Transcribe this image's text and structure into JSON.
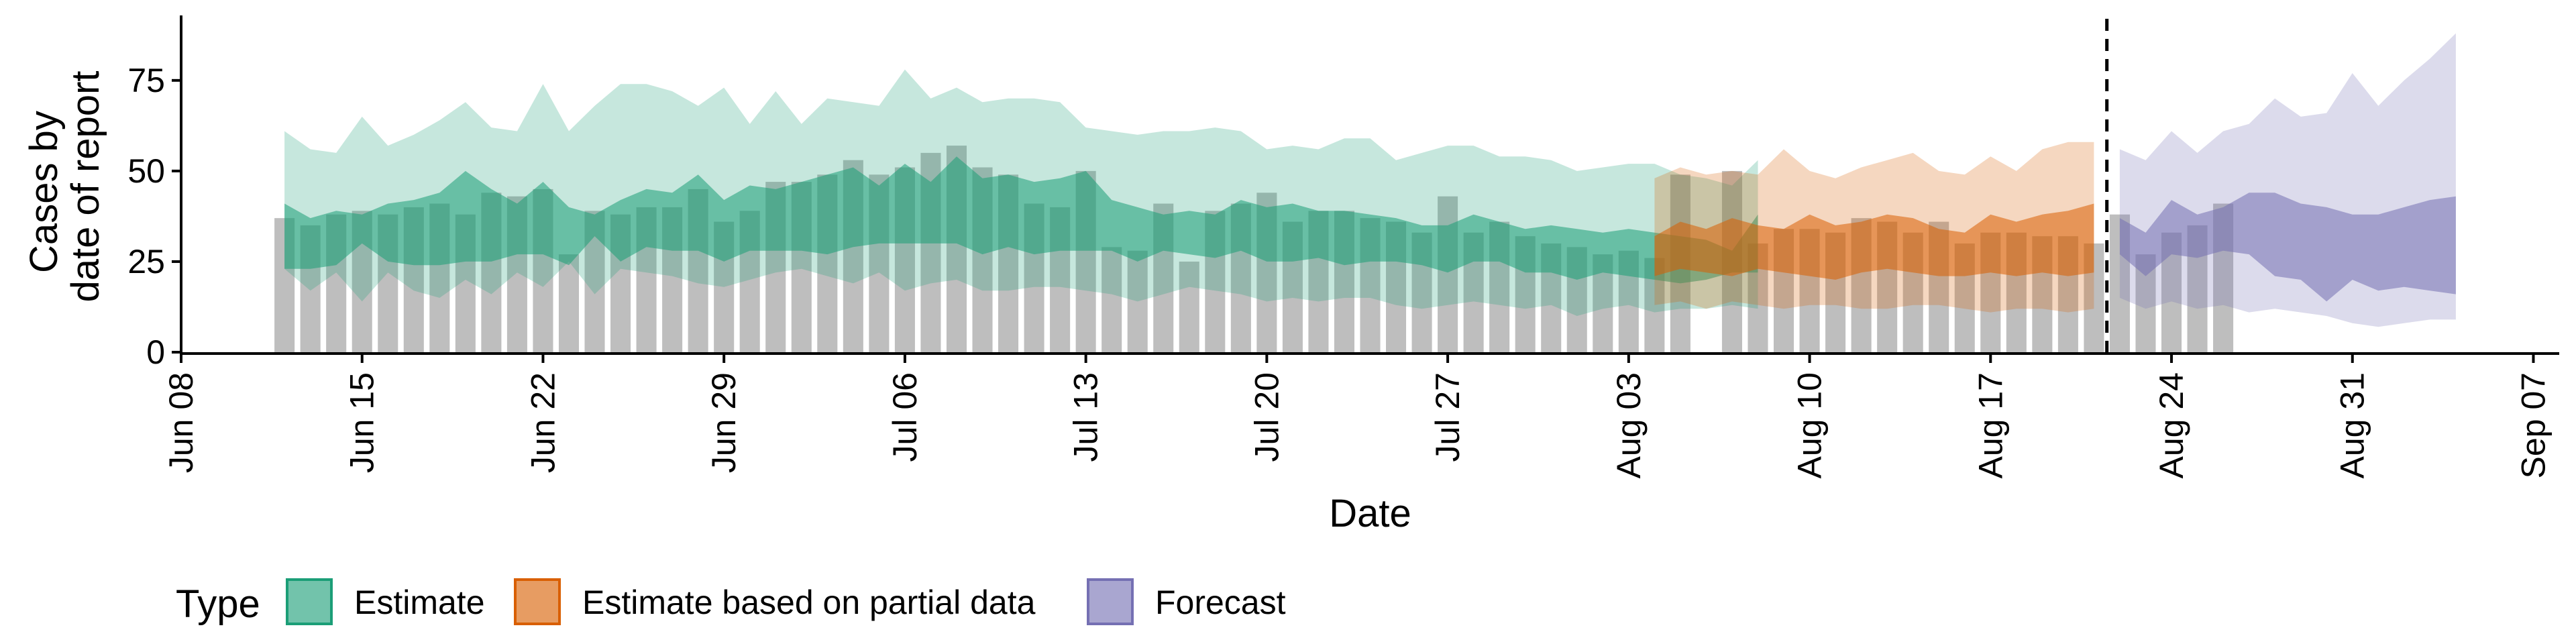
{
  "chart_data": {
    "type": "bar",
    "xlabel": "Date",
    "ylabel_lines": [
      "Cases by",
      "date of report"
    ],
    "ylim": [
      0,
      92
    ],
    "y_ticks": [
      0,
      25,
      50,
      75
    ],
    "x_ticks": [
      "2020-06-08",
      "2020-06-15",
      "2020-06-22",
      "2020-06-29",
      "2020-07-06",
      "2020-07-13",
      "2020-07-20",
      "2020-07-27",
      "2020-08-03",
      "2020-08-10",
      "2020-08-17",
      "2020-08-24",
      "2020-08-31",
      "2020-09-07"
    ],
    "x_tick_labels": [
      "Jun 08",
      "Jun 15",
      "Jun 22",
      "Jun 29",
      "Jul 06",
      "Jul 13",
      "Jul 20",
      "Jul 27",
      "Aug 03",
      "Aug 10",
      "Aug 17",
      "Aug 24",
      "Aug 31",
      "Sep 07"
    ],
    "xlim": [
      "2020-06-08",
      "2020-09-08"
    ],
    "grid": false,
    "legend_position": "bottom",
    "legend_title": "Type",
    "cutoff_date": "2020-08-21",
    "reported_cases": {
      "color": "#bebebe",
      "start_date": "2020-06-12",
      "values": [
        37,
        35,
        38,
        39,
        38,
        40,
        41,
        38,
        44,
        43,
        45,
        27,
        39,
        38,
        40,
        40,
        45,
        36,
        39,
        47,
        47,
        49,
        53,
        49,
        51,
        55,
        57,
        51,
        49,
        41,
        40,
        50,
        29,
        28,
        41,
        25,
        39,
        41,
        44,
        36,
        39,
        39,
        37,
        36,
        33,
        43,
        33,
        36,
        32,
        30,
        29,
        27,
        28,
        26,
        49,
        0,
        50,
        30,
        34,
        34,
        33,
        37,
        36,
        33,
        36,
        30,
        33,
        33,
        32,
        32,
        30,
        38,
        27,
        33,
        35,
        41
      ]
    },
    "series": [
      {
        "name": "Estimate",
        "fill": "#1b9e77",
        "border": "#1b9e77",
        "start_date": "2020-06-12",
        "lower_90": [
          23,
          17,
          22,
          14,
          22,
          17,
          15,
          20,
          16,
          22,
          18,
          25,
          16,
          23,
          22,
          21,
          19,
          18,
          20,
          22,
          23,
          21,
          19,
          22,
          17,
          19,
          20,
          17,
          17,
          18,
          18,
          17,
          16,
          14,
          16,
          18,
          17,
          16,
          14,
          15,
          14,
          15,
          15,
          13,
          12,
          13,
          14,
          13,
          12,
          13,
          10,
          12,
          13,
          11,
          12,
          12,
          13,
          12
        ],
        "lower_50": [
          23,
          23,
          24,
          30,
          25,
          24,
          24,
          25,
          25,
          27,
          27,
          24,
          32,
          25,
          29,
          28,
          28,
          25,
          28,
          28,
          28,
          27,
          29,
          30,
          30,
          30,
          30,
          27,
          29,
          27,
          28,
          28,
          28,
          25,
          28,
          27,
          26,
          28,
          25,
          25,
          26,
          24,
          25,
          25,
          24,
          22,
          25,
          25,
          22,
          22,
          20,
          22,
          21,
          20,
          19,
          20,
          22,
          22
        ],
        "upper_50": [
          41,
          37,
          39,
          38,
          41,
          42,
          44,
          50,
          45,
          41,
          47,
          40,
          38,
          42,
          45,
          44,
          49,
          42,
          46,
          45,
          47,
          49,
          51,
          46,
          52,
          47,
          54,
          48,
          49,
          47,
          48,
          50,
          42,
          40,
          38,
          39,
          38,
          42,
          40,
          41,
          39,
          39,
          38,
          37,
          35,
          35,
          38,
          36,
          34,
          35,
          34,
          33,
          34,
          33,
          32,
          31,
          28,
          38
        ],
        "upper_90": [
          61,
          56,
          55,
          65,
          57,
          60,
          64,
          69,
          62,
          61,
          74,
          61,
          68,
          74,
          74,
          72,
          68,
          73,
          63,
          72,
          63,
          70,
          69,
          68,
          78,
          70,
          73,
          69,
          70,
          70,
          69,
          62,
          61,
          60,
          61,
          61,
          62,
          61,
          56,
          57,
          56,
          59,
          59,
          53,
          55,
          57,
          57,
          54,
          54,
          53,
          50,
          51,
          52,
          52,
          49,
          48,
          46,
          53
        ]
      },
      {
        "name": "Estimate based on partial data",
        "fill": "#d95f02",
        "border": "#d95f02",
        "start_date": "2020-08-04",
        "lower_90": [
          13,
          14,
          12,
          14,
          13,
          12,
          13,
          13,
          12,
          12,
          13,
          13,
          12,
          11,
          12,
          12,
          11,
          12
        ],
        "lower_50": [
          21,
          23,
          22,
          21,
          23,
          22,
          21,
          20,
          22,
          23,
          22,
          21,
          21,
          22,
          21,
          22,
          21,
          22
        ],
        "upper_50": [
          32,
          36,
          34,
          37,
          35,
          34,
          38,
          35,
          36,
          38,
          37,
          34,
          33,
          38,
          36,
          38,
          39,
          41
        ],
        "upper_90": [
          48,
          51,
          49,
          50,
          49,
          56,
          50,
          48,
          51,
          53,
          55,
          50,
          49,
          54,
          50,
          56,
          58,
          58
        ]
      },
      {
        "name": "Forecast",
        "fill": "#7570b3",
        "border": "#7570b3",
        "start_date": "2020-08-22",
        "lower_90": [
          15,
          12,
          14,
          12,
          13,
          11,
          12,
          11,
          10,
          8,
          7,
          8,
          9,
          9
        ],
        "lower_50": [
          27,
          21,
          27,
          26,
          28,
          27,
          21,
          20,
          14,
          20,
          17,
          18,
          17,
          16
        ],
        "upper_50": [
          37,
          33,
          42,
          38,
          40,
          44,
          44,
          41,
          40,
          38,
          38,
          40,
          42,
          43
        ],
        "upper_90": [
          56,
          53,
          61,
          55,
          61,
          63,
          70,
          65,
          66,
          77,
          68,
          75,
          81,
          88
        ]
      }
    ]
  }
}
